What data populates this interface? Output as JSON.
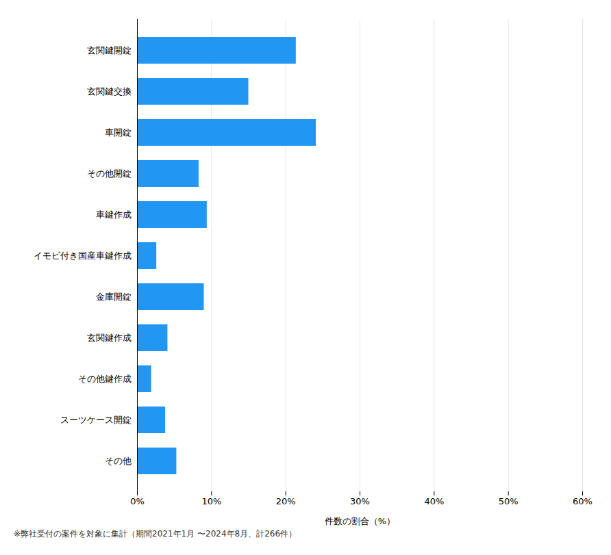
{
  "chart_data": {
    "type": "bar",
    "orientation": "horizontal",
    "categories": [
      "玄関鍵開錠",
      "玄関鍵交換",
      "車開錠",
      "その他開錠",
      "車鍵作成",
      "イモビ付き国産車鍵作成",
      "金庫開錠",
      "玄関鍵作成",
      "その他鍵作成",
      "スーツケース開錠",
      "その他"
    ],
    "values": [
      21.4,
      15.0,
      24.1,
      8.3,
      9.4,
      2.6,
      9.0,
      4.1,
      1.9,
      3.8,
      5.3
    ],
    "color": "#2196F3",
    "xlabel": "件数の割合（%）",
    "xlim": [
      0,
      60
    ],
    "xticks": [
      {
        "value": 0,
        "label": "0%"
      },
      {
        "value": 10,
        "label": "10%"
      },
      {
        "value": 20,
        "label": "20%"
      },
      {
        "value": 30,
        "label": "30%"
      },
      {
        "value": 40,
        "label": "40%"
      },
      {
        "value": 50,
        "label": "50%"
      },
      {
        "value": 60,
        "label": "60%"
      }
    ],
    "grid": true,
    "footnote": "※弊社受付の案件を対象に集計（期間2021年1月 〜2024年8月、計266件）"
  }
}
